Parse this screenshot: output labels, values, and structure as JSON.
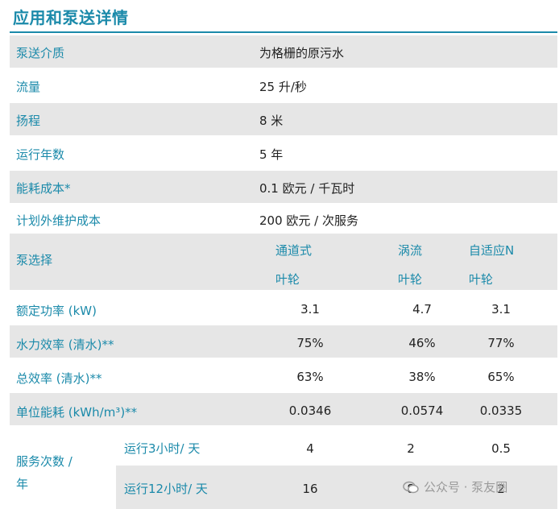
{
  "title": "应用和泵送详情",
  "rows": [
    {
      "label": "泵送介质",
      "value": "为格栅的原污水"
    },
    {
      "label": "流量",
      "value": "25 升/秒"
    },
    {
      "label": "扬程",
      "value": "8 米"
    },
    {
      "label": "运行年数",
      "value": "5 年"
    },
    {
      "label": "能耗成本*",
      "value": "0.1 欧元 / 千瓦时"
    },
    {
      "label": "计划外维护成本",
      "value": "200 欧元 / 次服务"
    }
  ],
  "pump_selection": {
    "label": "泵选择",
    "columns": [
      {
        "line1": "通道式",
        "line2": "叶轮"
      },
      {
        "line1": "涡流",
        "line2": "叶轮"
      },
      {
        "line1": "自适应N",
        "line2": "叶轮"
      }
    ]
  },
  "metrics": [
    {
      "label": "额定功率 (kW)",
      "values": [
        "3.1",
        "4.7",
        "3.1"
      ]
    },
    {
      "label": "水力效率 (清水)**",
      "values": [
        "75%",
        "46%",
        "77%"
      ]
    },
    {
      "label": "总效率 (清水)**",
      "values": [
        "63%",
        "38%",
        "65%"
      ]
    },
    {
      "label": "单位能耗 (kWh/m³)**",
      "values": [
        "0.0346",
        "0.0574",
        "0.0335"
      ]
    }
  ],
  "service": {
    "label_line1": "服务次数 /",
    "label_line2": "年",
    "rows": [
      {
        "label": "运行3小时/ 天",
        "values": [
          "4",
          "2",
          "0.5"
        ]
      },
      {
        "label": "运行12小时/ 天",
        "values": [
          "16",
          "8",
          "2"
        ]
      }
    ]
  },
  "watermark": "公众号 · 泵友圈"
}
